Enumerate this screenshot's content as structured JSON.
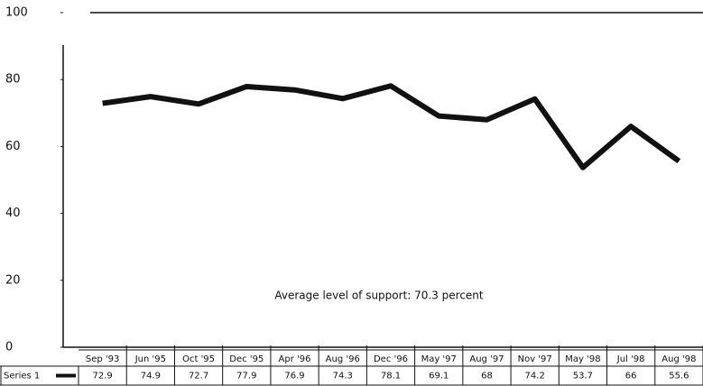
{
  "chart_data": {
    "type": "line",
    "categories": [
      "Sep '93",
      "Jun '95",
      "Oct '95",
      "Dec '95",
      "Apr '96",
      "Aug '96",
      "Dec '96",
      "May '97",
      "Aug '97",
      "Nov '97",
      "May '98",
      "Jul '98",
      "Aug '98"
    ],
    "series": [
      {
        "name": "Series 1",
        "color": "#111111",
        "values": [
          72.9,
          74.9,
          72.7,
          77.9,
          76.9,
          74.3,
          78.1,
          69.1,
          68,
          74.2,
          53.7,
          66,
          55.6
        ]
      }
    ],
    "ylim": [
      0,
      100
    ],
    "yticks": [
      0,
      20,
      40,
      60,
      80,
      100
    ],
    "annotation": "Average level of support: 70.3 percent"
  }
}
